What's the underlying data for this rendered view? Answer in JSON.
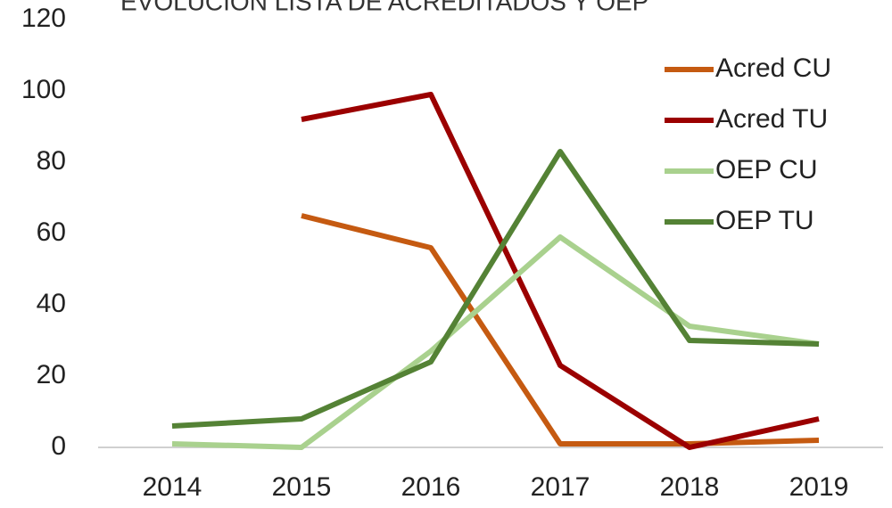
{
  "chart_data": {
    "type": "line",
    "title": "EVOLUCIÓN LISTA DE ACREDITADOS Y OEP",
    "categories": [
      "2014",
      "2015",
      "2016",
      "2017",
      "2018",
      "2019"
    ],
    "series": [
      {
        "name": "Acred CU",
        "color": "#c55a11",
        "values": [
          null,
          65,
          56,
          1,
          1,
          2
        ]
      },
      {
        "name": "Acred TU",
        "color": "#9b0000",
        "values": [
          null,
          92,
          99,
          23,
          0,
          8
        ]
      },
      {
        "name": "OEP CU",
        "color": "#a9d18e",
        "values": [
          1,
          0,
          27,
          59,
          34,
          29
        ]
      },
      {
        "name": "OEP TU",
        "color": "#548235",
        "values": [
          6,
          8,
          24,
          83,
          30,
          29
        ]
      }
    ],
    "ylim": [
      0,
      120
    ],
    "yticks": [
      0,
      20,
      40,
      60,
      80,
      100,
      120
    ],
    "grid": false,
    "legend": "upper right"
  }
}
